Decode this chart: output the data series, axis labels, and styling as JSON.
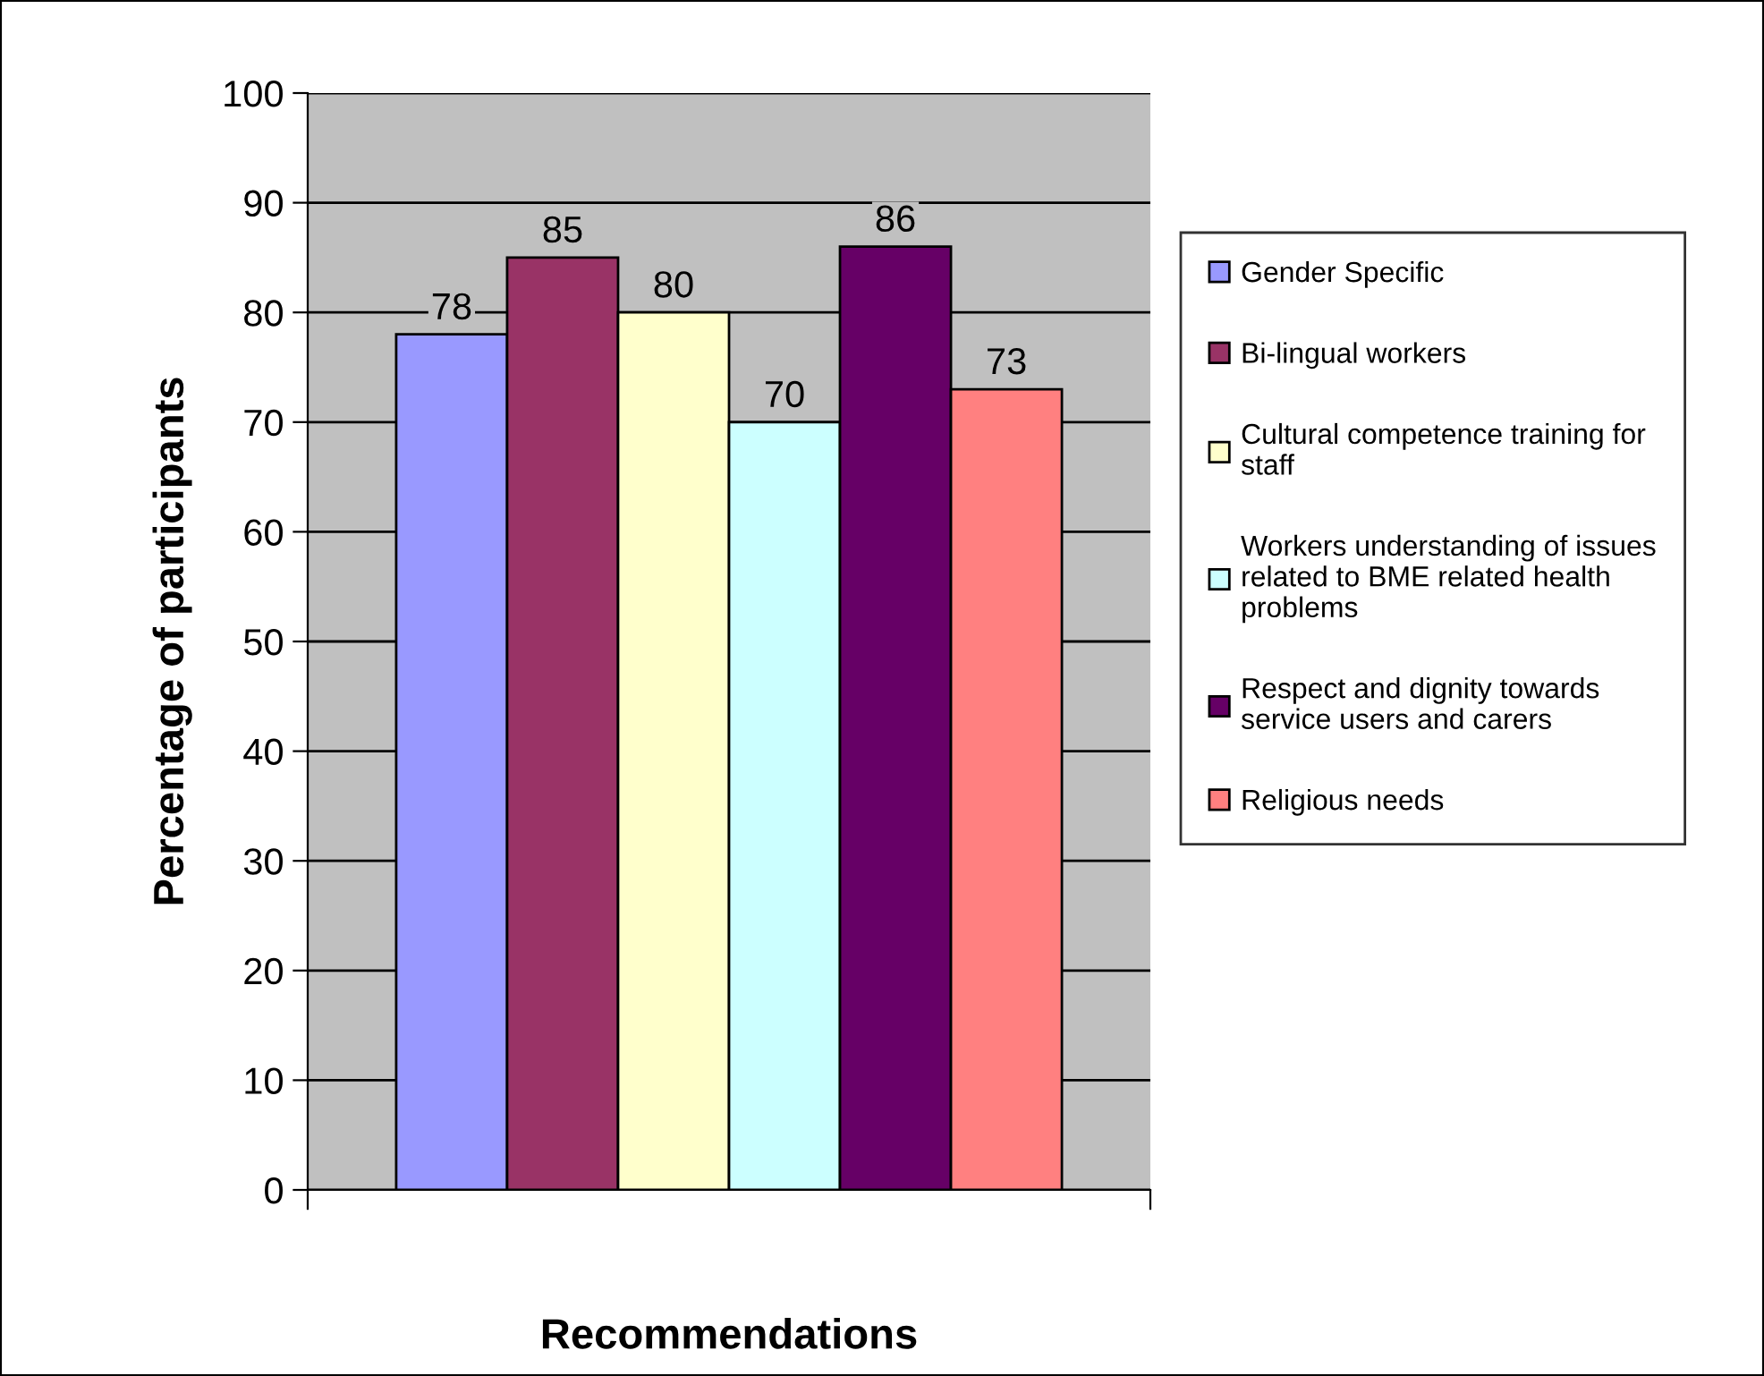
{
  "chart_data": {
    "type": "bar",
    "xlabel": "Recommendations",
    "ylabel": "Percentage of participants",
    "categories": [
      null
    ],
    "series": [
      {
        "name": "Gender Specific",
        "color": "#9999ff",
        "values": [
          78
        ]
      },
      {
        "name": "Bi-lingual workers",
        "color": "#993366",
        "values": [
          85
        ]
      },
      {
        "name": "Cultural competence training for staff",
        "color": "#ffffcc",
        "values": [
          80
        ]
      },
      {
        "name": "Workers understanding of issues related to BME related health problems",
        "color": "#ccffff",
        "values": [
          70
        ]
      },
      {
        "name": "Respect and dignity towards service users and carers",
        "color": "#660066",
        "values": [
          86
        ]
      },
      {
        "name": "Religious needs",
        "color": "#ff8080",
        "values": [
          73
        ]
      }
    ],
    "ylim": [
      0,
      100
    ],
    "yticks": [
      0,
      10,
      20,
      30,
      40,
      50,
      60,
      70,
      80,
      90,
      100
    ],
    "grid": "y",
    "legend": "right",
    "data_labels": true
  }
}
